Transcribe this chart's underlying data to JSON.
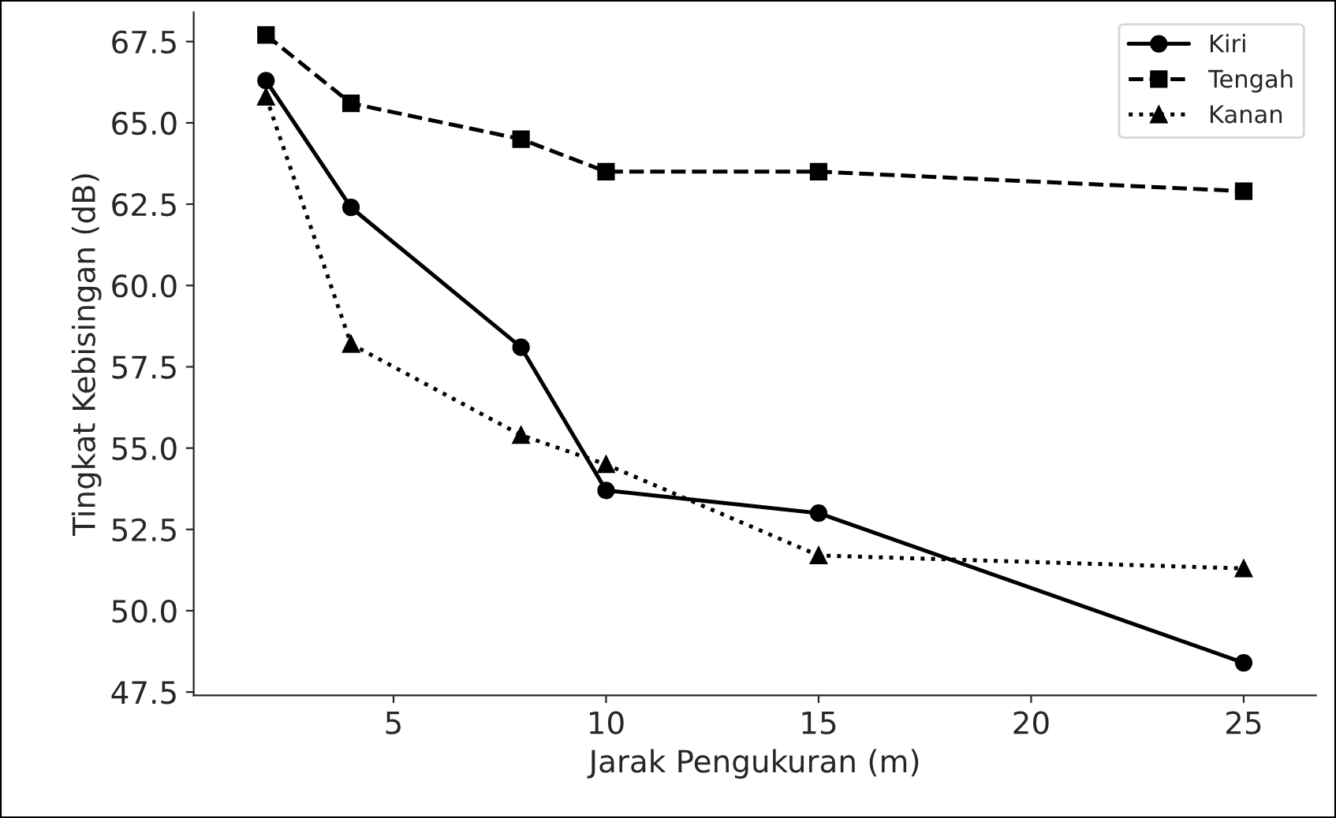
{
  "chart_data": {
    "type": "line",
    "xlabel": "Jarak Pengukuran (m)",
    "ylabel": "Tingkat Kebisingan (dB)",
    "x": [
      2,
      4,
      8,
      10,
      15,
      25
    ],
    "series": [
      {
        "name": "Kiri",
        "color": "#000000",
        "marker": "circle",
        "line_style": "solid",
        "values": [
          66.3,
          62.4,
          58.1,
          53.7,
          53.0,
          48.4
        ]
      },
      {
        "name": "Tengah",
        "color": "#000000",
        "marker": "square",
        "line_style": "dashed",
        "values": [
          67.7,
          65.6,
          64.5,
          63.5,
          63.5,
          62.9
        ]
      },
      {
        "name": "Kanan",
        "color": "#000000",
        "marker": "triangle",
        "line_style": "dotted",
        "values": [
          65.8,
          58.2,
          55.4,
          54.5,
          51.7,
          51.3
        ]
      }
    ],
    "xlim": [
      0.3,
      26.7
    ],
    "ylim": [
      47.4,
      68.4
    ],
    "xticks": [
      5,
      10,
      15,
      20,
      25
    ],
    "yticks": [
      {
        "value": 47.5,
        "label": "47.5"
      },
      {
        "value": 50,
        "label": "50.0"
      },
      {
        "value": 52.5,
        "label": "52.5"
      },
      {
        "value": 55,
        "label": "55.0"
      },
      {
        "value": 57.5,
        "label": "57.5"
      },
      {
        "value": 60,
        "label": "60.0"
      },
      {
        "value": 62.5,
        "label": "62.5"
      },
      {
        "value": 65,
        "label": "65.0"
      },
      {
        "value": 67.5,
        "label": "67.5"
      }
    ],
    "legend": "top right",
    "grid": false
  }
}
